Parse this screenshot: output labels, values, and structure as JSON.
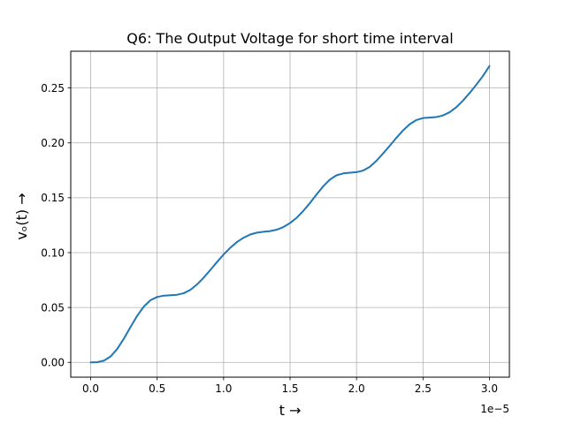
{
  "chart_data": {
    "type": "line",
    "title": "Q6: The Output Voltage for short time interval",
    "xlabel": "t →",
    "ylabel": "vₒ(t) →",
    "x_offset_label": "1e−5",
    "xlim": [
      -0.15,
      3.15
    ],
    "ylim": [
      -0.0135,
      0.2835
    ],
    "x_ticks": [
      0.0,
      0.5,
      1.0,
      1.5,
      2.0,
      2.5,
      3.0
    ],
    "x_tick_labels": [
      "0.0",
      "0.5",
      "1.0",
      "1.5",
      "2.0",
      "2.5",
      "3.0"
    ],
    "y_ticks": [
      0.0,
      0.05,
      0.1,
      0.15,
      0.2,
      0.25
    ],
    "y_tick_labels": [
      "0.00",
      "0.05",
      "0.10",
      "0.15",
      "0.20",
      "0.25"
    ],
    "grid": true,
    "series": [
      {
        "color": "#1f77b4",
        "x": [
          0.0,
          0.05,
          0.1,
          0.15,
          0.2,
          0.25,
          0.3,
          0.35,
          0.4,
          0.45,
          0.5,
          0.55,
          0.6,
          0.65,
          0.7,
          0.75,
          0.8,
          0.85,
          0.9,
          0.95,
          1.0,
          1.05,
          1.1,
          1.15,
          1.2,
          1.25,
          1.3,
          1.35,
          1.4,
          1.45,
          1.5,
          1.55,
          1.6,
          1.65,
          1.7,
          1.75,
          1.8,
          1.85,
          1.9,
          1.95,
          2.0,
          2.05,
          2.1,
          2.15,
          2.2,
          2.25,
          2.3,
          2.35,
          2.4,
          2.45,
          2.5,
          2.55,
          2.6,
          2.65,
          2.7,
          2.75,
          2.8,
          2.85,
          2.9,
          2.95,
          3.0
        ],
        "values": [
          0.0,
          0.0002,
          0.0016,
          0.0054,
          0.0123,
          0.0217,
          0.0323,
          0.0425,
          0.0509,
          0.0566,
          0.0596,
          0.0608,
          0.0612,
          0.0616,
          0.063,
          0.0661,
          0.071,
          0.0772,
          0.0842,
          0.0914,
          0.0983,
          0.1044,
          0.1096,
          0.1136,
          0.1165,
          0.1182,
          0.119,
          0.1196,
          0.1209,
          0.1233,
          0.127,
          0.1318,
          0.1381,
          0.1453,
          0.1531,
          0.1605,
          0.1666,
          0.1705,
          0.1722,
          0.1728,
          0.1733,
          0.1748,
          0.1782,
          0.1837,
          0.1904,
          0.1974,
          0.2046,
          0.2114,
          0.217,
          0.2208,
          0.2226,
          0.223,
          0.2235,
          0.225,
          0.2279,
          0.2324,
          0.2384,
          0.2453,
          0.2528,
          0.2608,
          0.27
        ]
      }
    ]
  }
}
